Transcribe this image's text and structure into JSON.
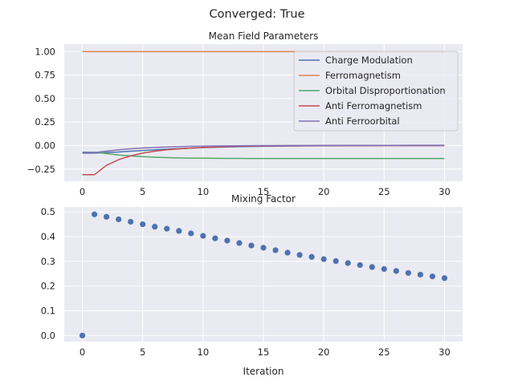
{
  "figure": {
    "suptitle": "Converged: True"
  },
  "colors": {
    "axes_bg": "#eaeaf2",
    "grid": "#ffffff",
    "text": "#262626",
    "charge_modulation": "#4c72b0",
    "ferromagnetism": "#dd8452",
    "orbital_disproportionation": "#55a868",
    "anti_ferromagnetism": "#c44e52",
    "anti_ferroorbital": "#8172b3",
    "mixing_points": "#4c72b0"
  },
  "chart_data": [
    {
      "type": "line",
      "title": "Mean Field Parameters",
      "xlabel": "",
      "ylabel": "",
      "xlim": [
        -1.5,
        31.5
      ],
      "ylim": [
        -0.38,
        1.08
      ],
      "xticks": [
        0,
        5,
        10,
        15,
        20,
        25,
        30
      ],
      "xtick_labels": [
        "0",
        "5",
        "10",
        "15",
        "20",
        "25",
        "30"
      ],
      "yticks": [
        -0.25,
        0.0,
        0.25,
        0.5,
        0.75,
        1.0
      ],
      "ytick_labels": [
        "−0.25",
        "0.00",
        "0.25",
        "0.50",
        "0.75",
        "1.00"
      ],
      "grid": true,
      "legend": "upper right",
      "x": [
        0,
        1,
        2,
        3,
        4,
        5,
        6,
        7,
        8,
        9,
        10,
        11,
        12,
        13,
        14,
        15,
        16,
        17,
        18,
        19,
        20,
        21,
        22,
        23,
        24,
        25,
        26,
        27,
        28,
        29,
        30
      ],
      "series": [
        {
          "name": "Charge Modulation",
          "color_key": "charge_modulation",
          "values": [
            -0.08,
            -0.08,
            -0.075,
            -0.068,
            -0.06,
            -0.052,
            -0.045,
            -0.038,
            -0.032,
            -0.027,
            -0.022,
            -0.018,
            -0.015,
            -0.012,
            -0.01,
            -0.008,
            -0.006,
            -0.005,
            -0.004,
            -0.003,
            -0.002,
            -0.002,
            -0.001,
            -0.001,
            -0.001,
            0,
            0,
            0,
            0,
            0,
            0
          ]
        },
        {
          "name": "Ferromagnetism",
          "color_key": "ferromagnetism",
          "values": [
            1,
            1,
            1,
            1,
            1,
            1,
            1,
            1,
            1,
            1,
            1,
            1,
            1,
            1,
            1,
            1,
            1,
            1,
            1,
            1,
            1,
            1,
            1,
            1,
            1,
            1,
            1,
            1,
            1,
            1,
            1
          ]
        },
        {
          "name": "Orbital Disproportionation",
          "color_key": "orbital_disproportionation",
          "values": [
            -0.07,
            -0.07,
            -0.085,
            -0.1,
            -0.11,
            -0.118,
            -0.124,
            -0.128,
            -0.131,
            -0.133,
            -0.135,
            -0.136,
            -0.137,
            -0.137,
            -0.138,
            -0.138,
            -0.138,
            -0.138,
            -0.138,
            -0.138,
            -0.138,
            -0.138,
            -0.138,
            -0.138,
            -0.138,
            -0.138,
            -0.138,
            -0.138,
            -0.138,
            -0.138,
            -0.138
          ]
        },
        {
          "name": "Anti Ferromagnetism",
          "color_key": "anti_ferromagnetism",
          "values": [
            -0.31,
            -0.31,
            -0.21,
            -0.15,
            -0.11,
            -0.08,
            -0.06,
            -0.045,
            -0.035,
            -0.027,
            -0.02,
            -0.015,
            -0.011,
            -0.008,
            -0.006,
            -0.004,
            -0.003,
            -0.002,
            -0.001,
            -0.001,
            0,
            0,
            0,
            0,
            0,
            0,
            0,
            0,
            0,
            0,
            0
          ]
        },
        {
          "name": "Anti Ferroorbital",
          "color_key": "anti_ferroorbital",
          "values": [
            -0.07,
            -0.075,
            -0.06,
            -0.045,
            -0.034,
            -0.026,
            -0.02,
            -0.015,
            -0.011,
            -0.008,
            -0.006,
            -0.004,
            -0.003,
            -0.002,
            -0.001,
            0,
            0,
            0.001,
            0.001,
            0.001,
            0.002,
            0.002,
            0.002,
            0.002,
            0.002,
            0.002,
            0.002,
            0.003,
            0.003,
            0.003,
            0.003
          ]
        }
      ]
    },
    {
      "type": "scatter",
      "title": "Mixing Factor",
      "xlabel": "Iteration",
      "ylabel": "",
      "xlim": [
        -1.5,
        31.5
      ],
      "ylim": [
        -0.025,
        0.52
      ],
      "xticks": [
        0,
        5,
        10,
        15,
        20,
        25,
        30
      ],
      "xtick_labels": [
        "0",
        "5",
        "10",
        "15",
        "20",
        "25",
        "30"
      ],
      "yticks": [
        0.0,
        0.1,
        0.2,
        0.3,
        0.4,
        0.5
      ],
      "ytick_labels": [
        "0.0",
        "0.1",
        "0.2",
        "0.3",
        "0.4",
        "0.5"
      ],
      "grid": true,
      "x": [
        0,
        1,
        2,
        3,
        4,
        5,
        6,
        7,
        8,
        9,
        10,
        11,
        12,
        13,
        14,
        15,
        16,
        17,
        18,
        19,
        20,
        21,
        22,
        23,
        24,
        25,
        26,
        27,
        28,
        29,
        30
      ],
      "values": [
        0,
        0.49,
        0.48,
        0.47,
        0.46,
        0.45,
        0.44,
        0.432,
        0.423,
        0.413,
        0.403,
        0.393,
        0.384,
        0.374,
        0.364,
        0.355,
        0.345,
        0.335,
        0.326,
        0.318,
        0.309,
        0.301,
        0.293,
        0.285,
        0.277,
        0.269,
        0.261,
        0.253,
        0.246,
        0.239,
        0.232
      ]
    }
  ]
}
